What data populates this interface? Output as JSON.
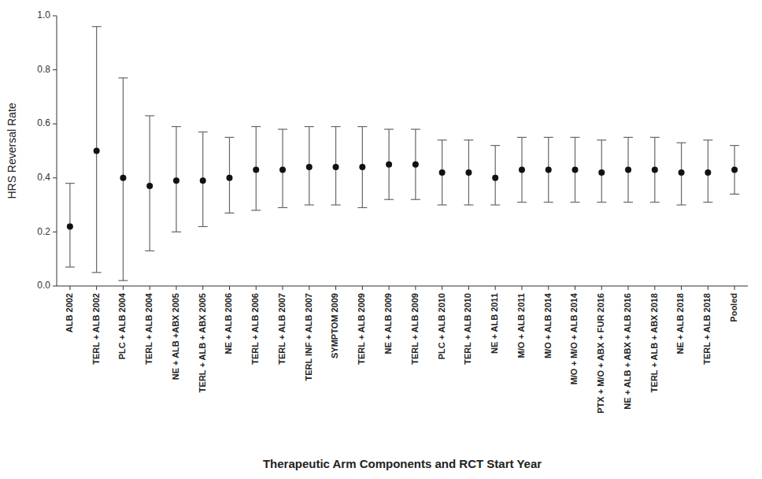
{
  "chart_data": {
    "type": "errorbar",
    "categories": [
      "ALB 2002",
      "TERL + ALB 2002",
      "PLC + ALB 2004",
      "TERL + ALB 2004",
      "NE + ALB +ABX 2005",
      "TERL + ALB + ABX 2005",
      "NE + ALB 2006",
      "TERL + ALB 2006",
      "TERL + ALB 2007",
      "TERL INF + ALB 2007",
      "SYMPTOM 2009",
      "TERL + ALB 2009",
      "NE + ALB 2009",
      "TERL + ALB 2009",
      "PLC + ALB 2010",
      "TERL + ALB 2010",
      "NE + ALB 2011",
      "M/O + ALB 2011",
      "M/O + ALB 2014",
      "M/O + M/O + ALB 2014",
      "PTX + M/O + ABX + FUR 2016",
      "NE + ALB + ABX + ALB 2016",
      "TERL + ALB + ABX 2018",
      "NE + ALB 2018",
      "TERL + ALB 2018",
      "Pooled"
    ],
    "values": [
      0.22,
      0.5,
      0.4,
      0.37,
      0.39,
      0.39,
      0.4,
      0.43,
      0.43,
      0.44,
      0.44,
      0.44,
      0.45,
      0.45,
      0.42,
      0.42,
      0.4,
      0.43,
      0.43,
      0.43,
      0.42,
      0.43,
      0.43,
      0.42,
      0.42,
      0.43
    ],
    "low": [
      0.07,
      0.05,
      0.02,
      0.13,
      0.2,
      0.22,
      0.27,
      0.28,
      0.29,
      0.3,
      0.3,
      0.29,
      0.32,
      0.32,
      0.3,
      0.3,
      0.3,
      0.31,
      0.31,
      0.31,
      0.31,
      0.31,
      0.31,
      0.3,
      0.31,
      0.34
    ],
    "high": [
      0.38,
      0.96,
      0.77,
      0.63,
      0.59,
      0.57,
      0.55,
      0.59,
      0.58,
      0.59,
      0.59,
      0.59,
      0.58,
      0.58,
      0.54,
      0.54,
      0.52,
      0.55,
      0.55,
      0.55,
      0.54,
      0.55,
      0.55,
      0.53,
      0.54,
      0.52
    ],
    "color": "#111111",
    "x_label": "Therapeutic Arm Components and RCT Start Year",
    "y_label": "HRS Reversal Rate",
    "ylim": [
      0.0,
      1.0
    ],
    "yticks": [
      {
        "value": 0.0,
        "label": "0.0"
      },
      0.2,
      0.4,
      0.6,
      0.8,
      {
        "value": 1.0,
        "label": "1.0"
      }
    ],
    "grid": false
  }
}
